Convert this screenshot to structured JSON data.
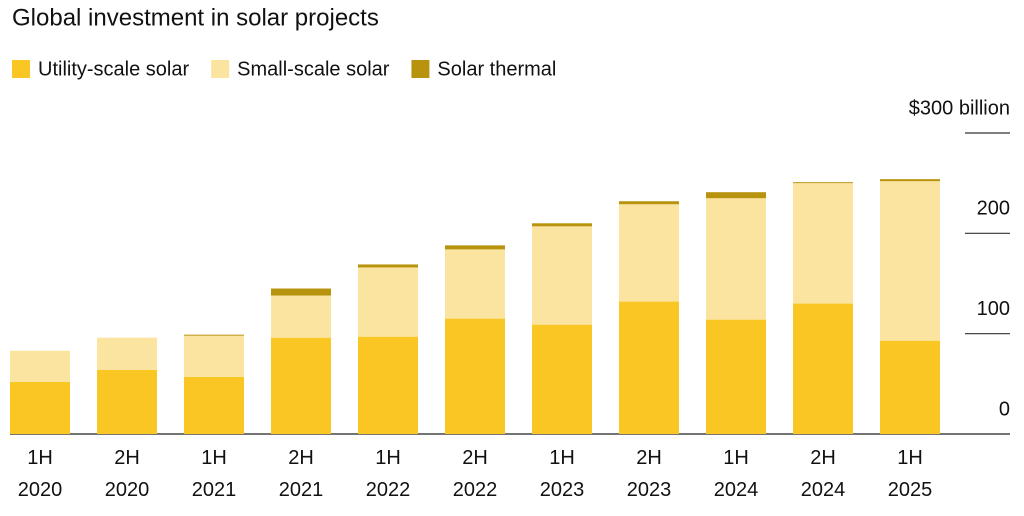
{
  "chart_data": {
    "type": "stacked-bar",
    "title": "Global investment in solar projects",
    "categories": [
      "1H\n2020",
      "2H\n2020",
      "1H\n2021",
      "2H\n2021",
      "1H\n2022",
      "2H\n2022",
      "1H\n2023",
      "2H\n2023",
      "1H\n2024",
      "2H\n2024",
      "1H\n2025"
    ],
    "series": [
      {
        "name": "Utility-scale solar",
        "color": "#f9c623",
        "values": [
          52,
          64,
          57,
          96,
          97,
          115,
          109,
          132,
          114,
          130,
          93
        ]
      },
      {
        "name": "Small-scale solar",
        "color": "#fbe4a0",
        "values": [
          31,
          32,
          41,
          42,
          69,
          69,
          98,
          97,
          121,
          120,
          159
        ]
      },
      {
        "name": "Solar thermal",
        "color": "#b8940e",
        "values": [
          0,
          0,
          1,
          7,
          3,
          4,
          3,
          3,
          6,
          1,
          2
        ]
      }
    ],
    "ylim": [
      0,
      300
    ],
    "yticks": [
      0,
      100,
      200,
      {
        "value": 300,
        "label": "$300 billion"
      }
    ]
  }
}
